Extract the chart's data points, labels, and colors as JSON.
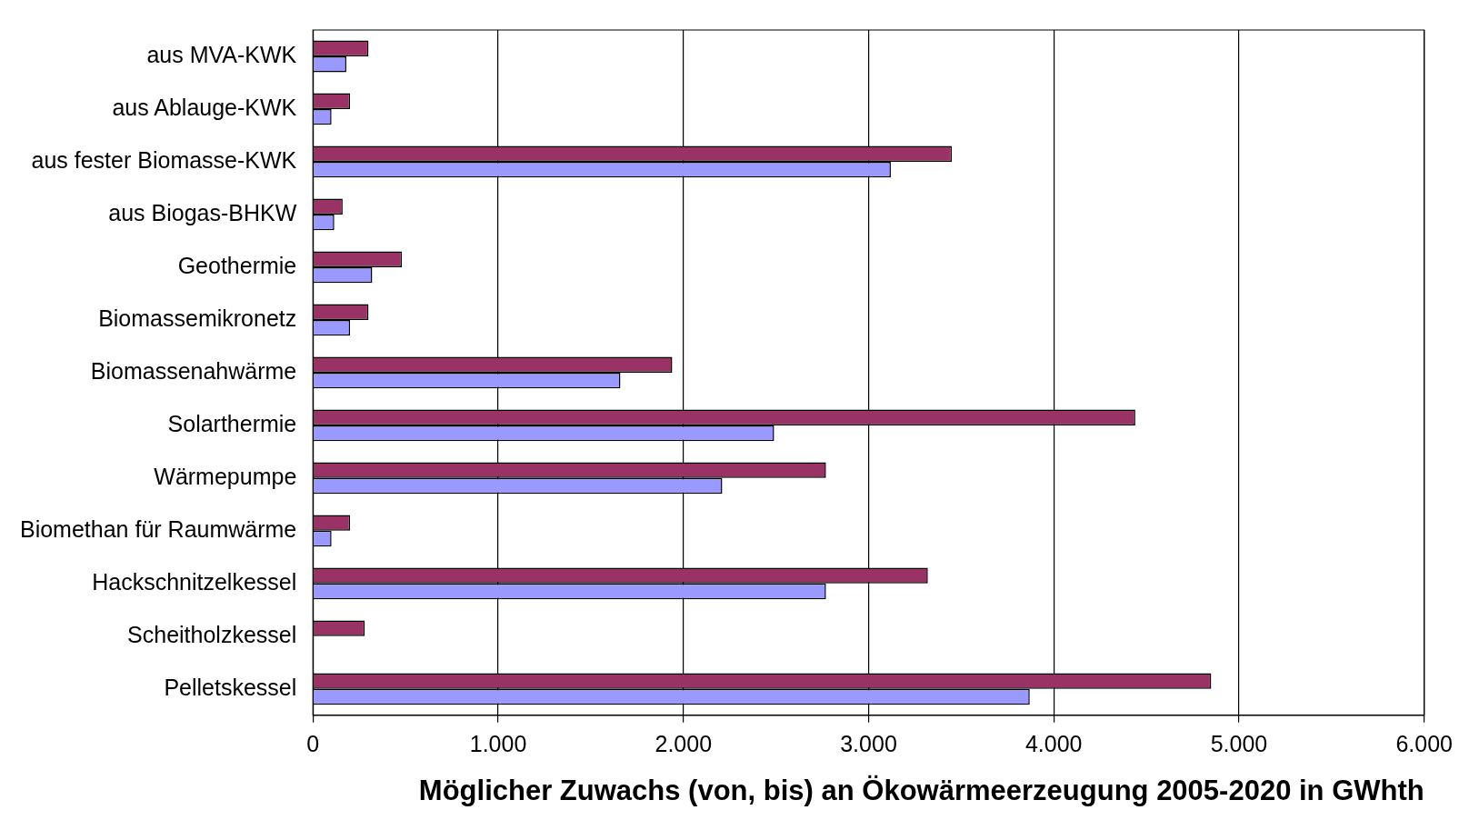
{
  "chart_data": {
    "type": "bar",
    "orientation": "horizontal",
    "xlabel": "Möglicher Zuwachs (von, bis) an Ökowärmeerzeugung 2005-2020 in GWhth",
    "categories": [
      "aus MVA-KWK",
      "aus Ablauge-KWK",
      "aus fester Biomasse-KWK",
      "aus Biogas-BHKW",
      "Geothermie",
      "Biomassemikronetz",
      "Biomassenahwärme",
      "Solarthermie",
      "Wärmepumpe",
      "Biomethan für Raumwärme",
      "Hackschnitzelkessel",
      "Scheitholzkessel",
      "Pelletskessel"
    ],
    "series": [
      {
        "color": "#993366",
        "values": [
          300,
          200,
          3450,
          160,
          480,
          300,
          1940,
          4440,
          2770,
          200,
          3320,
          280,
          4850
        ]
      },
      {
        "color": "#9999ff",
        "values": [
          180,
          100,
          3120,
          115,
          320,
          200,
          1660,
          2490,
          2210,
          100,
          2770,
          0,
          3870
        ]
      }
    ],
    "xlim": [
      0,
      6000
    ],
    "xticks": [
      0,
      {
        "value": 1000,
        "label": "1.000"
      },
      {
        "value": 2000,
        "label": "2.000"
      },
      {
        "value": 3000,
        "label": "3.000"
      },
      {
        "value": 4000,
        "label": "4.000"
      },
      {
        "value": 5000,
        "label": "5.000"
      },
      {
        "value": 6000,
        "label": "6.000"
      }
    ],
    "grid": "x",
    "legend": false
  }
}
